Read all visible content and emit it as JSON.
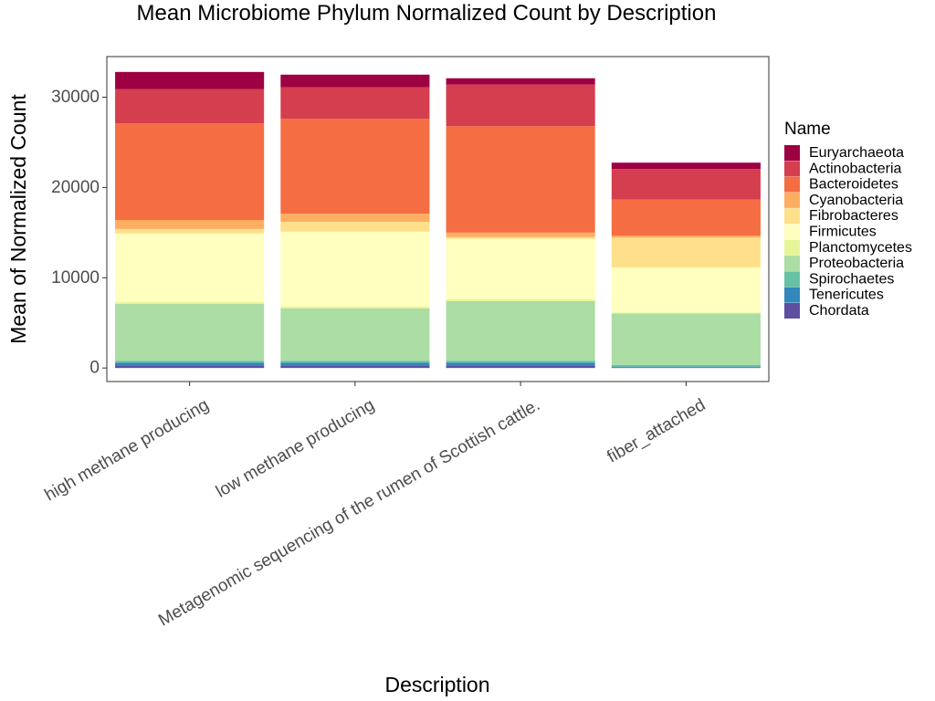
{
  "chart_data": {
    "type": "bar",
    "stacked": true,
    "title": "Mean Microbiome Phylum Normalized Count by Description",
    "xlabel": "Description",
    "ylabel": "Mean of Normalized Count",
    "ylim": [
      -1500,
      34500
    ],
    "yticks": [
      0,
      10000,
      20000,
      30000
    ],
    "ytick_labels": [
      "0",
      "10000",
      "20000",
      "30000"
    ],
    "grid": false,
    "legend": {
      "title": "Name",
      "position": "right"
    },
    "categories": [
      "high methane producing",
      "low methane producing",
      "Metagenomic sequencing of the rumen of Scottish cattle.",
      "fiber_attached"
    ],
    "series": [
      {
        "name": "Euryarchaeota",
        "color": "#9E0142",
        "values": [
          1900,
          1400,
          700,
          700
        ]
      },
      {
        "name": "Actinobacteria",
        "color": "#D53E4F",
        "values": [
          3800,
          3500,
          4600,
          3400
        ]
      },
      {
        "name": "Bacteroidetes",
        "color": "#F46D43",
        "values": [
          10700,
          10500,
          11800,
          4000
        ]
      },
      {
        "name": "Cyanobacteria",
        "color": "#FDAE61",
        "values": [
          1000,
          900,
          500,
          200
        ]
      },
      {
        "name": "Fibrobacteres",
        "color": "#FEE08B",
        "values": [
          500,
          1100,
          200,
          3300
        ]
      },
      {
        "name": "Firmicutes",
        "color": "#FFFFBF",
        "values": [
          7600,
          8300,
          6700,
          5000
        ]
      },
      {
        "name": "Planctomycetes",
        "color": "#E6F598",
        "values": [
          200,
          200,
          200,
          100
        ]
      },
      {
        "name": "Proteobacteria",
        "color": "#ABDDA4",
        "values": [
          6300,
          5800,
          6600,
          5700
        ]
      },
      {
        "name": "Spirochaetes",
        "color": "#66C2A5",
        "values": [
          200,
          200,
          200,
          200
        ]
      },
      {
        "name": "Tenericutes",
        "color": "#3288BD",
        "values": [
          300,
          300,
          300,
          100
        ]
      },
      {
        "name": "Chordata",
        "color": "#5E4FA2",
        "values": [
          300,
          300,
          300,
          50
        ]
      }
    ]
  }
}
